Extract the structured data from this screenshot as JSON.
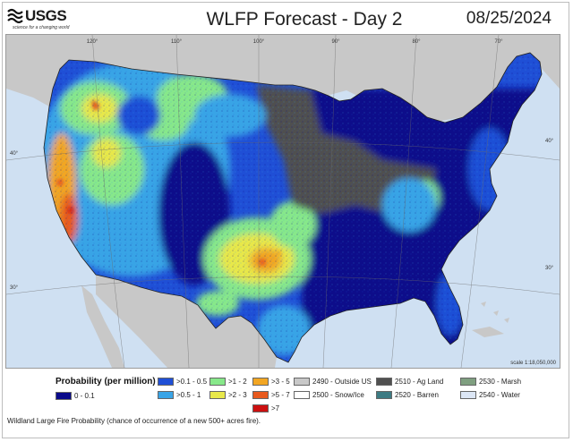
{
  "header": {
    "logo_text": "USGS",
    "logo_tagline": "science for a changing world",
    "title": "WLFP Forecast - Day 2",
    "date": "08/25/2024"
  },
  "map": {
    "meridian_labels": [
      "120°",
      "110°",
      "100°",
      "90°",
      "80°",
      "70°"
    ],
    "parallel_labels": [
      "40°",
      "30°"
    ],
    "scale_text": "scale 1:18,050,000",
    "colors": {
      "water": "#cfe0f2",
      "outside_us": "#c8c8c8",
      "deep": "#0a0a8a",
      "blue": "#1f4fd6",
      "lightblue": "#39a4e6",
      "green": "#87e88a",
      "yellow": "#e8e84a",
      "orange": "#f2a623",
      "red_orange": "#e85a1e",
      "red": "#cc1010",
      "ag_land": "#505050",
      "barren": "#3d7b83",
      "marsh": "#7f9f80"
    }
  },
  "legend": {
    "title": "Probability (per million)",
    "items": [
      {
        "label": "0 - 0.1",
        "color": "#0a0a8a"
      },
      {
        "label": ">0.1 - 0.5",
        "color": "#1f4fd6"
      },
      {
        "label": ">0.5 - 1",
        "color": "#39a4e6"
      },
      {
        "label": ">1 - 2",
        "color": "#87e88a"
      },
      {
        "label": ">2 - 3",
        "color": "#e8e84a"
      },
      {
        "label": ">3 - 5",
        "color": "#f2a623"
      },
      {
        "label": ">5 - 7",
        "color": "#e85a1e"
      },
      {
        "label": ">7",
        "color": "#cc1010"
      },
      {
        "label": "2490 - Outside US",
        "color": "#c8c8c8"
      },
      {
        "label": "2500 - Snow/Ice",
        "color": "#ffffff"
      },
      {
        "label": "2510 - Ag Land",
        "color": "#505050"
      },
      {
        "label": "2520 - Barren",
        "color": "#3d7b83"
      },
      {
        "label": "2530 - Marsh",
        "color": "#7f9f80"
      },
      {
        "label": "2540 - Water",
        "color": "#dce6f5"
      }
    ]
  },
  "footnote": "Wildland Large Fire Probability (chance of occurrence of a new 500+ acres fire)."
}
